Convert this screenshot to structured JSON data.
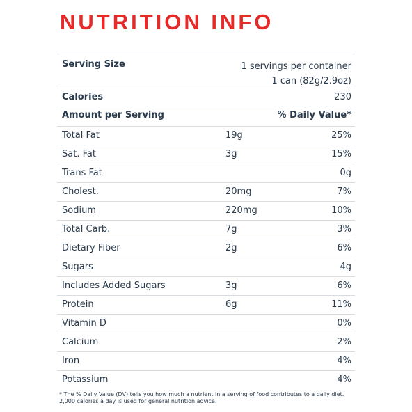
{
  "title": "NUTRITION INFO",
  "serving": {
    "label": "Serving Size",
    "servings_per_container": "1 servings per container",
    "serving_size": "1 can (82g/2.9oz)"
  },
  "calories": {
    "label": "Calories",
    "value": "230"
  },
  "header": {
    "label": "Amount per Serving",
    "dv_label": "% Daily Value*"
  },
  "rows": [
    {
      "name": "Total Fat",
      "amount": "19g",
      "dv": "25%"
    },
    {
      "name": "Sat. Fat",
      "amount": "3g",
      "dv": "15%"
    },
    {
      "name": "Trans Fat",
      "amount": "",
      "dv": "0g"
    },
    {
      "name": "Cholest.",
      "amount": "20mg",
      "dv": "7%"
    },
    {
      "name": "Sodium",
      "amount": "220mg",
      "dv": "10%"
    },
    {
      "name": "Total Carb.",
      "amount": "7g",
      "dv": "3%"
    },
    {
      "name": "Dietary Fiber",
      "amount": "2g",
      "dv": "6%"
    },
    {
      "name": "Sugars",
      "amount": "",
      "dv": "4g"
    },
    {
      "name": "Includes Added Sugars",
      "amount": "3g",
      "dv": "6%"
    },
    {
      "name": "Protein",
      "amount": "6g",
      "dv": "11%"
    },
    {
      "name": "Vitamin D",
      "amount": "",
      "dv": "0%"
    },
    {
      "name": "Calcium",
      "amount": "",
      "dv": "2%"
    },
    {
      "name": "Iron",
      "amount": "",
      "dv": "4%"
    },
    {
      "name": "Potassium",
      "amount": "",
      "dv": "4%"
    }
  ],
  "footnote": "* The % Daily Value (DV) tells you how much a nutrient in a serving of food contributes to a daily diet. 2,000 calories a day is used for general nutrition advice."
}
